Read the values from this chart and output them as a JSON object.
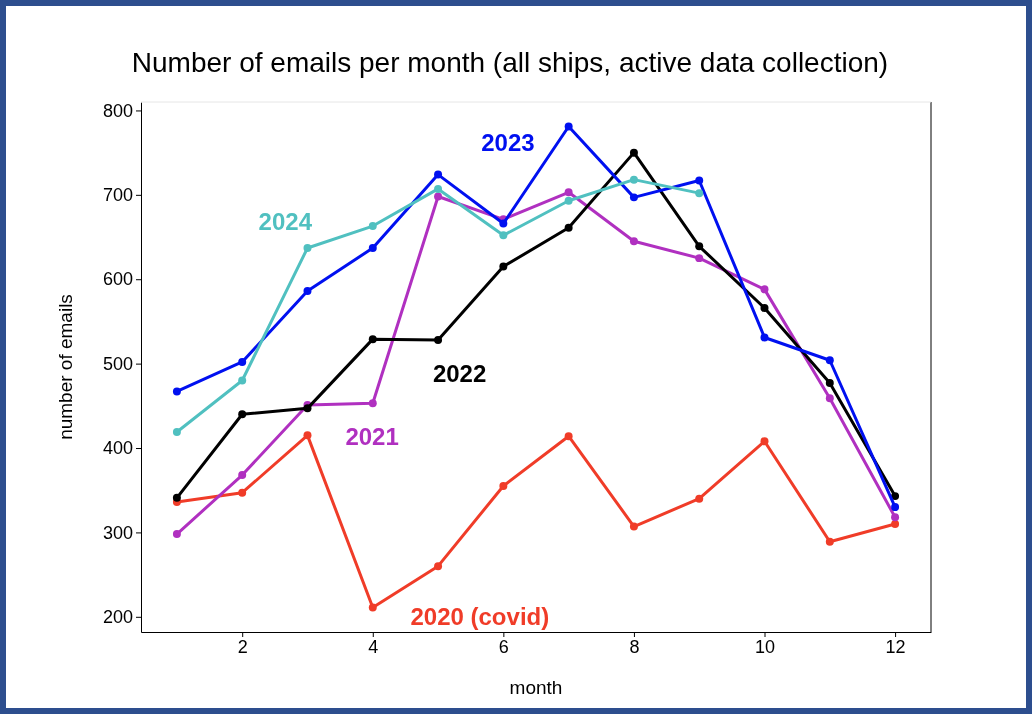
{
  "chart_data": {
    "type": "line",
    "title": "Number of emails per month (all ships, active data collection)",
    "xlabel": "month",
    "ylabel": "number of emails",
    "x": [
      1,
      2,
      3,
      4,
      5,
      6,
      7,
      8,
      9,
      10,
      11,
      12
    ],
    "xlim": [
      0.45,
      12.55
    ],
    "xticks": [
      2,
      4,
      6,
      8,
      10,
      12
    ],
    "ylim": [
      182,
      810
    ],
    "yticks": [
      200,
      300,
      400,
      500,
      600,
      700,
      800
    ],
    "grid": false,
    "legend": false,
    "marker": "circle",
    "line_style": "solid",
    "series": [
      {
        "name": "2020 (covid)",
        "color": "#f03c28",
        "values": [
          336,
          347,
          415,
          211,
          260,
          355,
          414,
          307,
          340,
          408,
          289,
          310
        ]
      },
      {
        "name": "2021",
        "color": "#b030c0",
        "values": [
          298,
          368,
          451,
          453,
          698,
          671,
          703,
          645,
          625,
          588,
          459,
          318
        ]
      },
      {
        "name": "2022",
        "color": "#000000",
        "values": [
          341,
          440,
          447,
          529,
          528,
          615,
          661,
          750,
          639,
          566,
          477,
          343
        ]
      },
      {
        "name": "2023",
        "color": "#0010f0",
        "values": [
          467,
          502,
          586,
          637,
          724,
          666,
          781,
          697,
          717,
          531,
          504,
          330
        ]
      },
      {
        "name": "2024",
        "color": "#50c0c0",
        "values": [
          419,
          480,
          637,
          663,
          707,
          652,
          693,
          718,
          702,
          null,
          null,
          null
        ]
      }
    ]
  }
}
